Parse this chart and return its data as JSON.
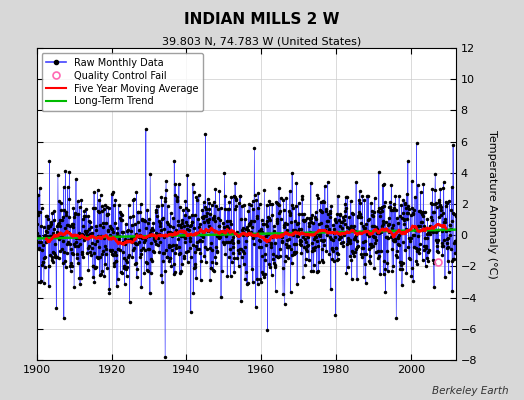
{
  "title": "INDIAN MILLS 2 W",
  "subtitle": "39.803 N, 74.783 W (United States)",
  "ylabel": "Temperature Anomaly (°C)",
  "watermark": "Berkeley Earth",
  "xlim": [
    1900,
    2012
  ],
  "ylim": [
    -8,
    12
  ],
  "yticks": [
    -8,
    -6,
    -4,
    -2,
    0,
    2,
    4,
    6,
    8,
    10,
    12
  ],
  "xticks": [
    1900,
    1920,
    1940,
    1960,
    1980,
    2000
  ],
  "background_color": "#d8d8d8",
  "plot_background": "#ffffff",
  "raw_line_color": "#4444ff",
  "raw_dot_color": "#000000",
  "moving_avg_color": "#ff0000",
  "trend_color": "#00bb00",
  "qc_fail_color": "#ff69b4",
  "seed": 17,
  "n_years": 112,
  "start_year": 1900,
  "months_per_year": 12,
  "figsize": [
    5.24,
    4.0
  ],
  "dpi": 100
}
